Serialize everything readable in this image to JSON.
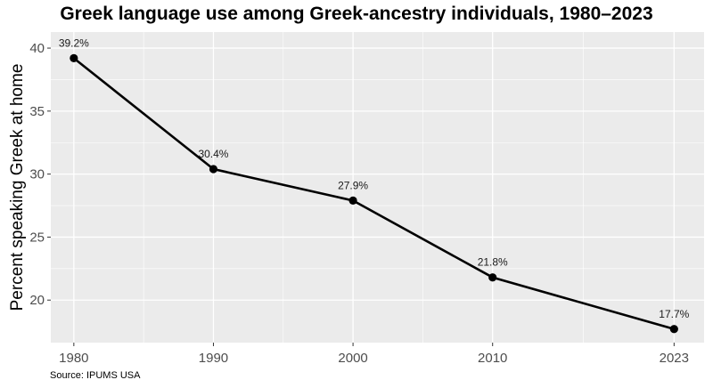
{
  "chart_data": {
    "type": "line",
    "title": "Greek language use among Greek-ancestry individuals, 1980–2023",
    "xlabel": "",
    "ylabel": "Percent speaking Greek at home",
    "x": [
      1980,
      1990,
      2000,
      2010,
      2023
    ],
    "x_tick_labels": [
      "1980",
      "1990",
      "2000",
      "2010",
      "2023"
    ],
    "series": [
      {
        "values": [
          39.2,
          30.4,
          27.9,
          21.8,
          17.7
        ]
      }
    ],
    "data_labels": [
      "39.2%",
      "30.4%",
      "27.9%",
      "21.8%",
      "17.7%"
    ],
    "y_ticks": [
      20,
      25,
      30,
      35,
      40
    ],
    "y_tick_labels": [
      "20",
      "25",
      "30",
      "35",
      "40"
    ],
    "xlim": [
      1978.35,
      2025.15
    ],
    "ylim": [
      16.625,
      41.275
    ],
    "grid": true,
    "colors": {
      "panel": "#ebebeb",
      "grid": "#ffffff",
      "line": "#000000"
    },
    "source": "Source: IPUMS USA"
  }
}
